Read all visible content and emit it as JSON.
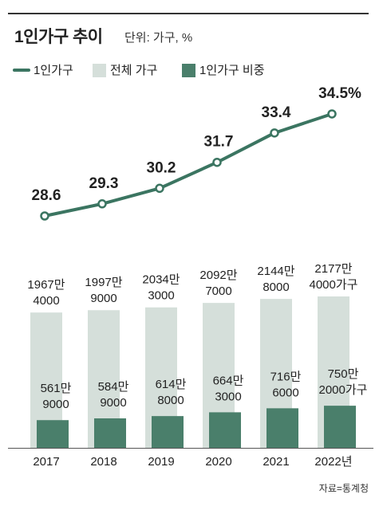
{
  "title": "1인가구 추이",
  "subtitle": "단위: 가구, %",
  "source": "자료=통계청",
  "colors": {
    "total": "#d5dfda",
    "single": "#4a7f6b",
    "line": "#3b7561",
    "axis": "#555555"
  },
  "legend": [
    "1인가구",
    "전체 가구",
    "1인가구 비중"
  ],
  "chart_data": {
    "type": "bar",
    "categories": [
      "2017",
      "2018",
      "2019",
      "2020",
      "2021",
      "2022년"
    ],
    "series": [
      {
        "name": "전체 가구",
        "values": [
          19674000,
          19979000,
          20343000,
          20927000,
          21448000,
          21774000
        ],
        "labels": [
          [
            "1967만",
            "4000"
          ],
          [
            "1997만",
            "9000"
          ],
          [
            "2034만",
            "3000"
          ],
          [
            "2092만",
            "7000"
          ],
          [
            "2144만",
            "8000"
          ],
          [
            "2177만",
            "4000가구"
          ]
        ]
      },
      {
        "name": "1인가구",
        "values": [
          5619000,
          5849000,
          6148000,
          6643000,
          7166000,
          7502000
        ],
        "labels": [
          [
            "561만",
            "9000"
          ],
          [
            "584만",
            "9000"
          ],
          [
            "614만",
            "8000"
          ],
          [
            "664만",
            "3000"
          ],
          [
            "716만",
            "6000"
          ],
          [
            "750만",
            "2000가구"
          ]
        ]
      }
    ],
    "line": {
      "name": "1인가구 비중",
      "values": [
        28.6,
        29.3,
        30.2,
        31.7,
        33.4,
        34.5
      ],
      "labels": [
        "28.6",
        "29.3",
        "30.2",
        "31.7",
        "33.4",
        "34.5%"
      ]
    }
  }
}
